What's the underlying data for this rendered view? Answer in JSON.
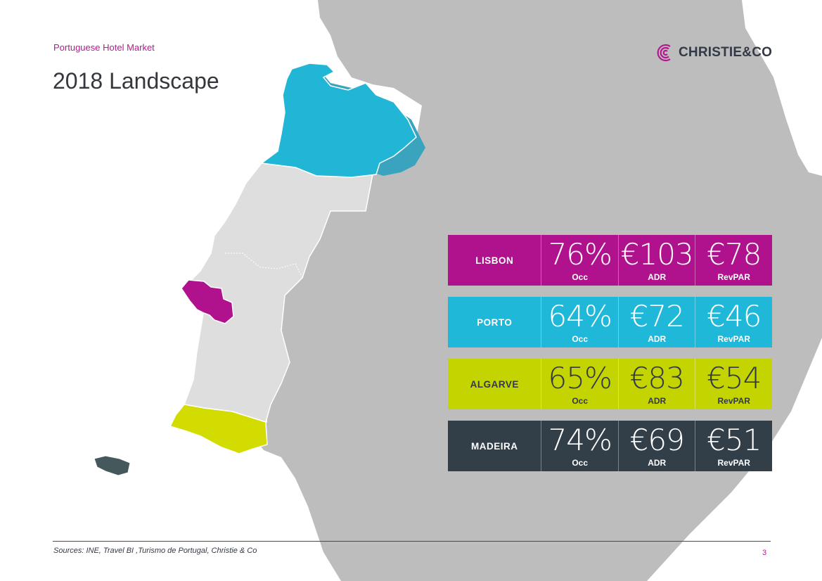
{
  "header": {
    "kicker": "Portuguese Hotel Market",
    "title": "2018 Landscape"
  },
  "logo": {
    "text": "CHRISTIE&CO",
    "icon": "christie-co-mark-icon",
    "color": "#b5198f"
  },
  "stats": {
    "labels": {
      "occ": "Occ",
      "adr": "ADR",
      "revpar": "RevPAR"
    },
    "rows": [
      {
        "region": "LISBON",
        "occ": "76%",
        "adr": "€103",
        "revpar": "€78",
        "color": "#b0128e"
      },
      {
        "region": "PORTO",
        "occ": "64%",
        "adr": "€72",
        "revpar": "€46",
        "color": "#1fb8d8"
      },
      {
        "region": "ALGARVE",
        "occ": "65%",
        "adr": "€83",
        "revpar": "€54",
        "color": "#c4d400"
      },
      {
        "region": "MADEIRA",
        "occ": "74%",
        "adr": "€69",
        "revpar": "€51",
        "color": "#323e48"
      }
    ]
  },
  "map_colors": {
    "spain": "#bdbdbd",
    "portugal_center": "#dedede",
    "north": "#22b6d6",
    "lisbon": "#b0128e",
    "algarve": "#d2dc00",
    "madeira": "#45595d"
  },
  "footer": {
    "sources": "Sources: INE, Travel BI ,Turismo de Portugal, Christie & Co",
    "page": "3"
  }
}
